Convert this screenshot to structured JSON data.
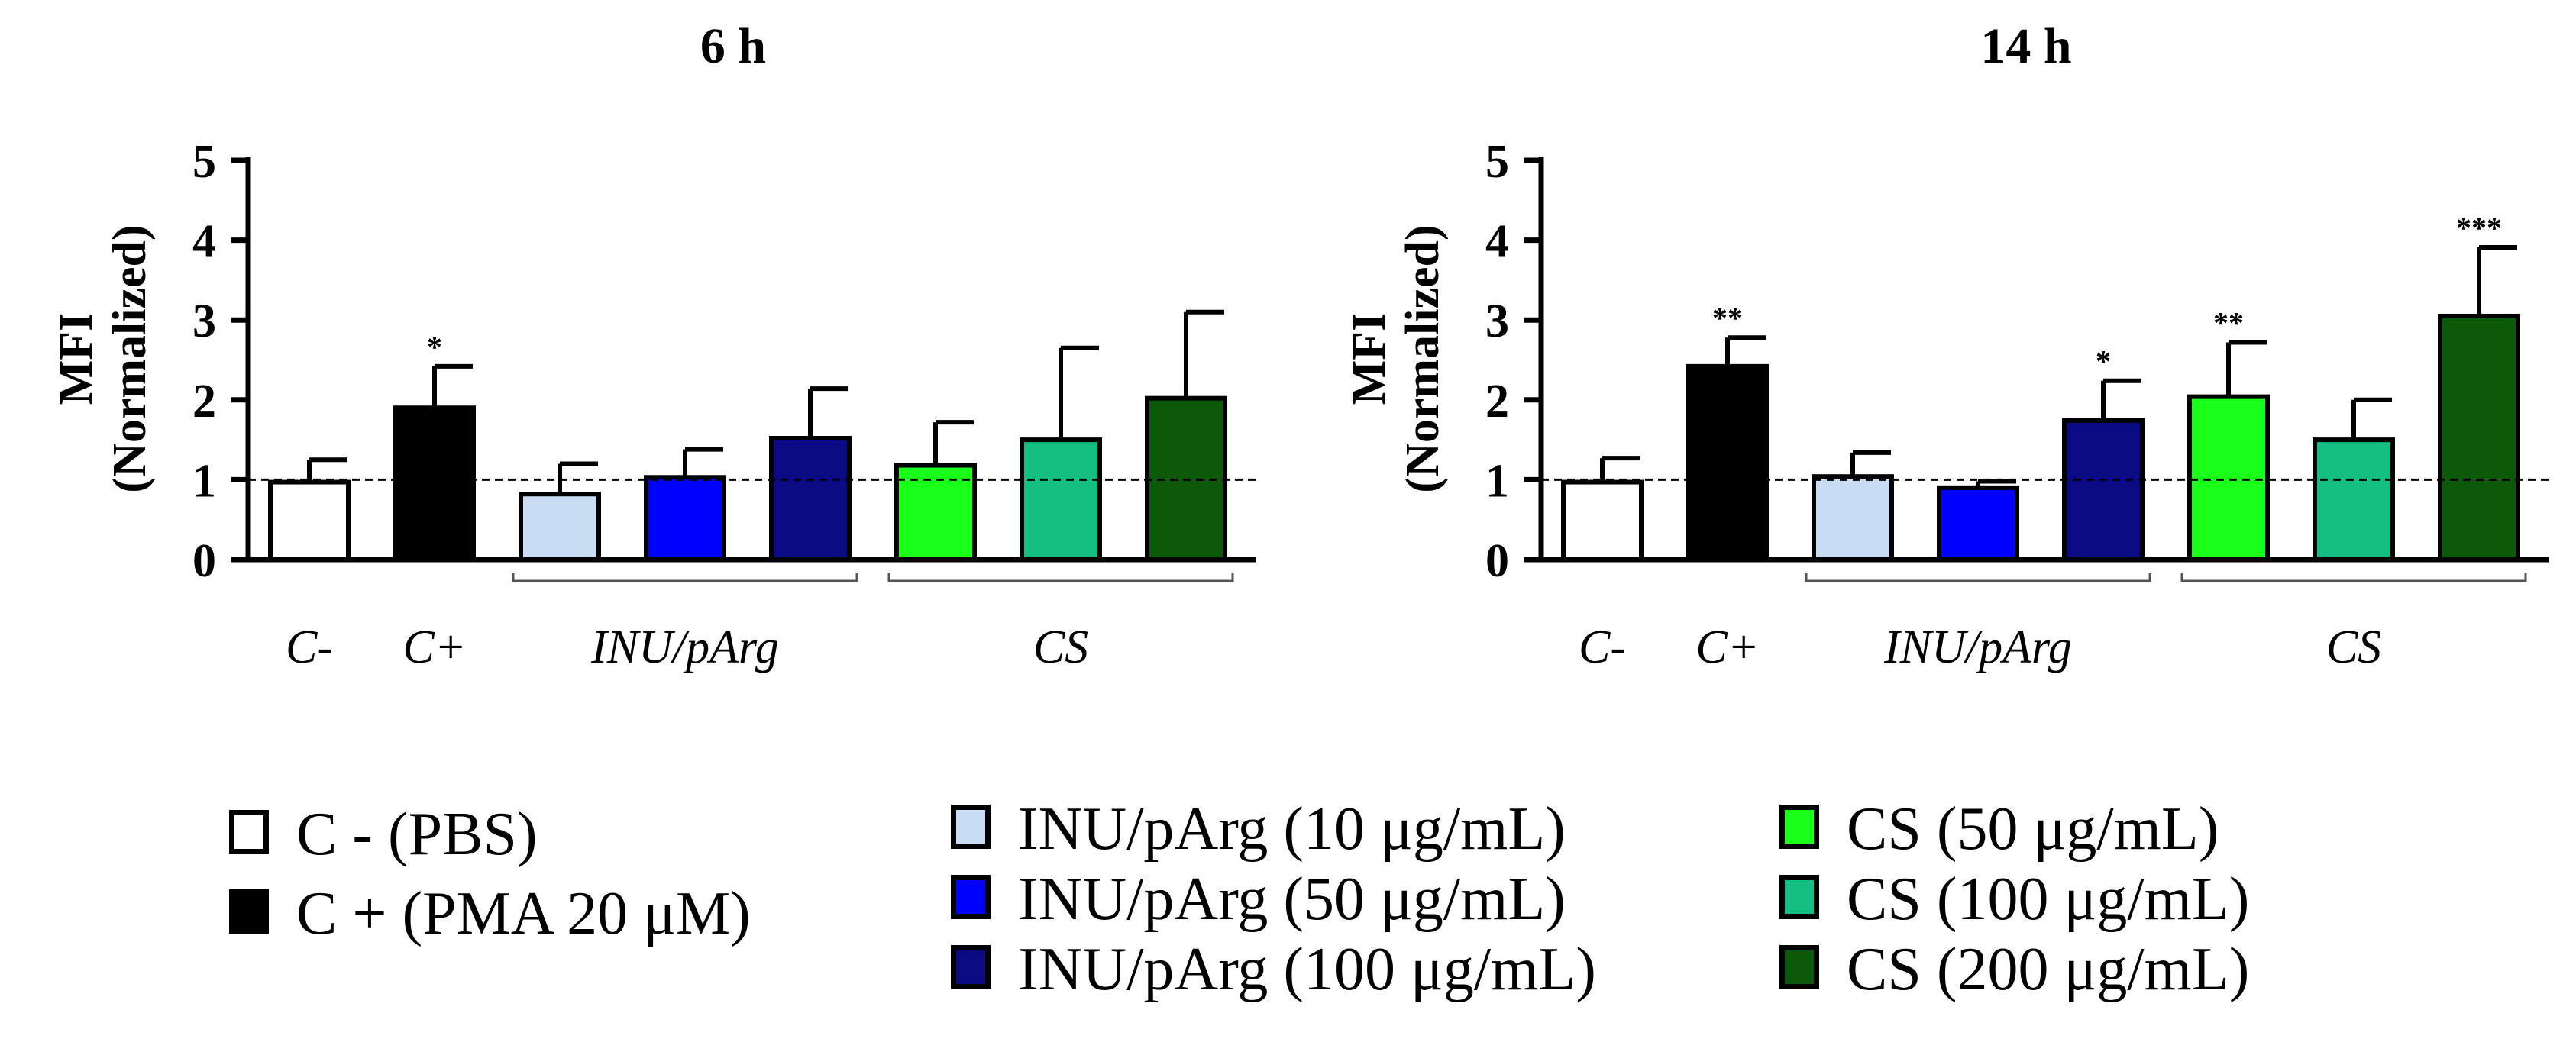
{
  "chart_data": [
    {
      "type": "bar",
      "title": "6 h",
      "ylabel_line1": "MFI",
      "ylabel_line2": "(Normalized)",
      "ylim": [
        0,
        5
      ],
      "yticks": [
        "0",
        "1",
        "2",
        "3",
        "4",
        "5"
      ],
      "reference_line": 1,
      "bars": [
        {
          "name": "C - (PBS)",
          "value": 0.97,
          "error": 0.28,
          "color": "#ffffff",
          "sig": ""
        },
        {
          "name": "C + (PMA 20 μM)",
          "value": 1.9,
          "error": 0.52,
          "color": "#000000",
          "sig": "*"
        },
        {
          "name": "INU/pArg (10 μg/mL)",
          "value": 0.82,
          "error": 0.38,
          "color": "#c8dcf4",
          "sig": ""
        },
        {
          "name": "INU/pArg (50 μg/mL)",
          "value": 1.03,
          "error": 0.35,
          "color": "#0000ff",
          "sig": ""
        },
        {
          "name": "INU/pArg (100 μg/mL)",
          "value": 1.52,
          "error": 0.62,
          "color": "#0a0a82",
          "sig": ""
        },
        {
          "name": "CS (50 μg/mL)",
          "value": 1.18,
          "error": 0.54,
          "color": "#19ff19",
          "sig": ""
        },
        {
          "name": "CS (100 μg/mL)",
          "value": 1.5,
          "error": 1.15,
          "color": "#14be82",
          "sig": ""
        },
        {
          "name": "CS (200 μg/mL)",
          "value": 2.02,
          "error": 1.08,
          "color": "#0a5a0a",
          "sig": ""
        }
      ],
      "group_labels": [
        "C-",
        "C+",
        "INU/pArg",
        "CS"
      ]
    },
    {
      "type": "bar",
      "title": "14 h",
      "ylabel_line1": "MFI",
      "ylabel_line2": "(Normalized)",
      "ylim": [
        0,
        5
      ],
      "yticks": [
        "0",
        "1",
        "2",
        "3",
        "4",
        "5"
      ],
      "reference_line": 1,
      "bars": [
        {
          "name": "C - (PBS)",
          "value": 0.97,
          "error": 0.3,
          "color": "#ffffff",
          "sig": ""
        },
        {
          "name": "C + (PMA 20 μM)",
          "value": 2.42,
          "error": 0.36,
          "color": "#000000",
          "sig": "**"
        },
        {
          "name": "INU/pArg (10 μg/mL)",
          "value": 1.04,
          "error": 0.3,
          "color": "#c8dcf4",
          "sig": ""
        },
        {
          "name": "INU/pArg (50 μg/mL)",
          "value": 0.9,
          "error": 0.08,
          "color": "#0000ff",
          "sig": ""
        },
        {
          "name": "INU/pArg (100 μg/mL)",
          "value": 1.74,
          "error": 0.5,
          "color": "#0a0a82",
          "sig": "*"
        },
        {
          "name": "CS (50 μg/mL)",
          "value": 2.04,
          "error": 0.68,
          "color": "#19ff19",
          "sig": "**"
        },
        {
          "name": "CS (100 μg/mL)",
          "value": 1.5,
          "error": 0.5,
          "color": "#14be82",
          "sig": ""
        },
        {
          "name": "CS (200 μg/mL)",
          "value": 3.05,
          "error": 0.86,
          "color": "#0a5a0a",
          "sig": "***"
        }
      ],
      "group_labels": [
        "C-",
        "C+",
        "INU/pArg",
        "CS"
      ]
    }
  ],
  "legend": {
    "col1": [
      {
        "label": "C -  (PBS)",
        "color": "#ffffff"
      },
      {
        "label": "C + (PMA 20 μM)",
        "color": "#000000"
      }
    ],
    "col2": [
      {
        "label": "INU/pArg (10 μg/mL)",
        "color": "#c8dcf4"
      },
      {
        "label": "INU/pArg (50 μg/mL)",
        "color": "#0000ff"
      },
      {
        "label": "INU/pArg (100 μg/mL)",
        "color": "#0a0a82"
      }
    ],
    "col3": [
      {
        "label": "CS (50 μg/mL)",
        "color": "#19ff19"
      },
      {
        "label": "CS (100 μg/mL)",
        "color": "#14be82"
      },
      {
        "label": "CS (200 μg/mL)",
        "color": "#0a5a0a"
      }
    ]
  }
}
